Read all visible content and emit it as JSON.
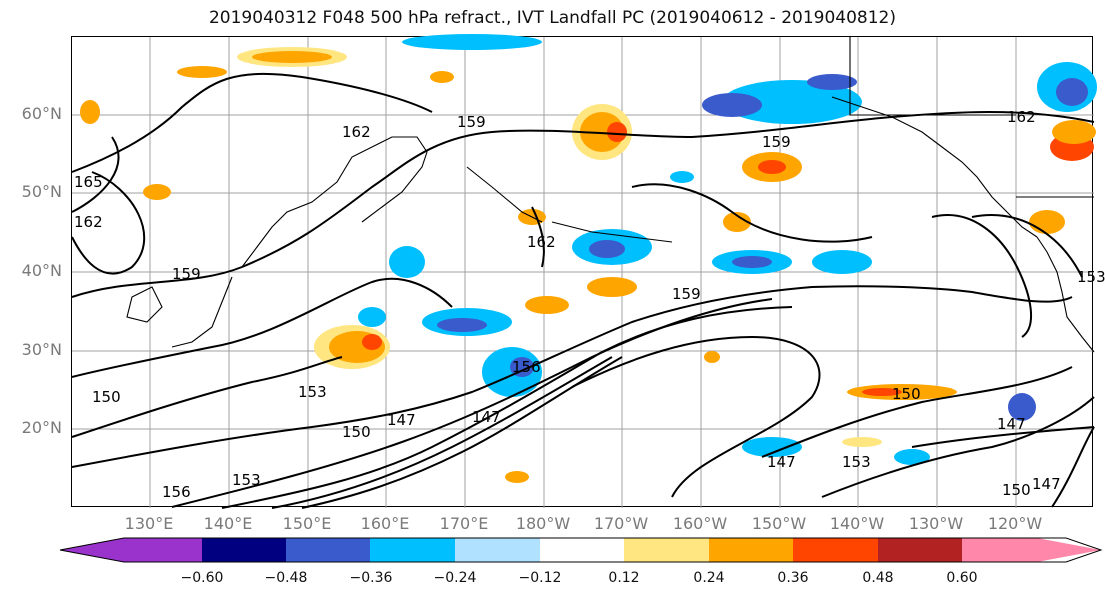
{
  "title": "2019040312 F048 500 hPa refract., IVT Landfall PC (2019040612 - 2019040812)",
  "lat_labels": [
    "60°N",
    "50°N",
    "40°N",
    "30°N",
    "20°N"
  ],
  "lon_labels": [
    "130°E",
    "140°E",
    "150°E",
    "160°E",
    "170°E",
    "180°W",
    "170°W",
    "160°W",
    "150°W",
    "140°W",
    "130°W",
    "120°W"
  ],
  "colorbar": {
    "ticks": [
      "−0.60",
      "−0.48",
      "−0.36",
      "−0.24",
      "−0.12",
      "0.12",
      "0.24",
      "0.36",
      "0.48",
      "0.60"
    ],
    "colors": [
      "#9933cc",
      "#000080",
      "#3a5bcc",
      "#00bfff",
      "#b0e2ff",
      "#ffffff",
      "#ffe680",
      "#ffa500",
      "#ff4500",
      "#b22222",
      "#ff88aa"
    ]
  },
  "contour_labels": [
    "159",
    "162",
    "159",
    "162",
    "165",
    "162",
    "159",
    "159",
    "153",
    "150",
    "147",
    "150",
    "156",
    "156",
    "153",
    "147",
    "150",
    "147",
    "153",
    "147",
    "150",
    "147",
    "162",
    "153"
  ],
  "colors": {
    "positive": "#ffa500",
    "negative": "#00bfff",
    "contour": "#000000",
    "grid": "#a0a0a0",
    "coast": "#000000"
  }
}
